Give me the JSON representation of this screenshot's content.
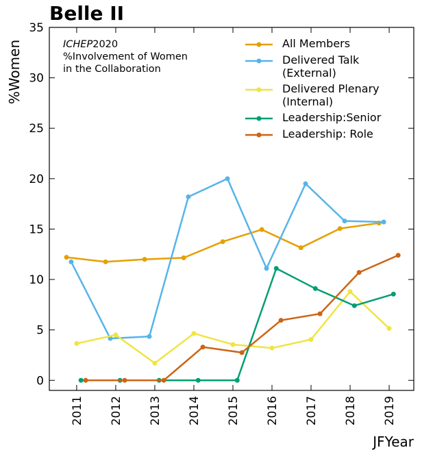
{
  "chart_data": {
    "type": "line",
    "title": "Belle II",
    "xlabel": "JFYear",
    "ylabel": "%Women",
    "annotation": {
      "experiment": "ICHEP",
      "year": "2020",
      "lines": [
        "%Involvement of Women",
        "in the Collaboration"
      ]
    },
    "xlim": [
      2010.3,
      2019.63
    ],
    "xticks": [
      2011,
      2012,
      2013,
      2014,
      2015,
      2016,
      2017,
      2018,
      2019
    ],
    "ylim": [
      -1,
      35
    ],
    "yticks": [
      0,
      5,
      10,
      15,
      20,
      25,
      30,
      35
    ],
    "legend": "upper right",
    "series": [
      {
        "name": "All Members",
        "color": "#e69f00",
        "x": [
          2010.74,
          2011.74,
          2012.74,
          2013.74,
          2014.74,
          2015.74,
          2016.74,
          2017.74,
          2018.74
        ],
        "values": [
          12.2,
          11.75,
          12.0,
          12.15,
          13.75,
          14.95,
          13.15,
          15.05,
          15.6
        ]
      },
      {
        "name": "Delivered Talk (External)",
        "color": "#56b4e9",
        "x": [
          2010.86,
          2011.86,
          2012.86,
          2013.86,
          2014.86,
          2015.86,
          2016.86,
          2017.86,
          2018.86
        ],
        "values": [
          11.75,
          4.15,
          4.35,
          18.2,
          20.0,
          11.1,
          19.5,
          15.8,
          15.7
        ]
      },
      {
        "name": "Delivered Plenary (Internal)",
        "color": "#f0e442",
        "x": [
          2011,
          2012,
          2013,
          2014,
          2015,
          2016,
          2017,
          2018,
          2019
        ],
        "values": [
          3.65,
          4.5,
          1.7,
          4.65,
          3.55,
          3.2,
          4.05,
          8.8,
          5.15
        ]
      },
      {
        "name": "Leadership:Senior",
        "color": "#009e73",
        "x": [
          2011.11,
          2012.11,
          2013.11,
          2014.11,
          2015.11,
          2016.11,
          2017.11,
          2018.11,
          2019.11
        ],
        "values": [
          0,
          0,
          0,
          0,
          0,
          11.1,
          9.1,
          7.4,
          8.55
        ]
      },
      {
        "name": "Leadership: Role",
        "color": "#cc6414",
        "x": [
          2011.23,
          2012.23,
          2013.23,
          2014.23,
          2015.23,
          2016.23,
          2017.23,
          2018.23,
          2019.23
        ],
        "values": [
          0,
          0,
          0,
          3.3,
          2.75,
          5.95,
          6.6,
          10.7,
          12.4
        ]
      }
    ]
  }
}
